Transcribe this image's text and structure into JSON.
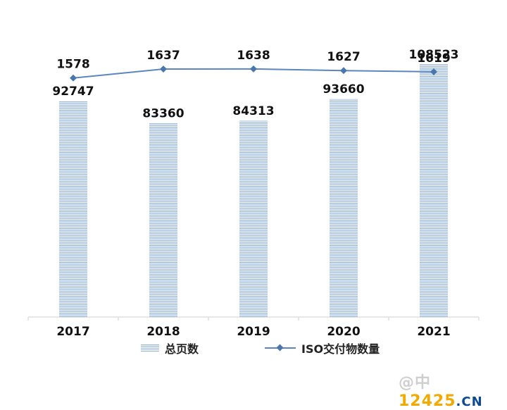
{
  "chart_data": {
    "type": "bar",
    "categories": [
      "2017",
      "2018",
      "2019",
      "2020",
      "2021"
    ],
    "series": [
      {
        "name": "总页数",
        "type": "bar",
        "values": [
          92747,
          83360,
          84313,
          93660,
          108523
        ],
        "color": "#8fb0d6"
      },
      {
        "name": "ISO交付物数量",
        "type": "line",
        "values": [
          1578,
          1637,
          1638,
          1627,
          1619
        ],
        "color": "#4a76b0"
      }
    ],
    "bar_ylim": [
      0,
      130000
    ],
    "line_ylim": [
      0,
      2000
    ],
    "legend_position": "bottom",
    "grid": false
  },
  "watermark": {
    "prefix": "@中",
    "middle": "12425",
    "suffix": ".CN"
  }
}
